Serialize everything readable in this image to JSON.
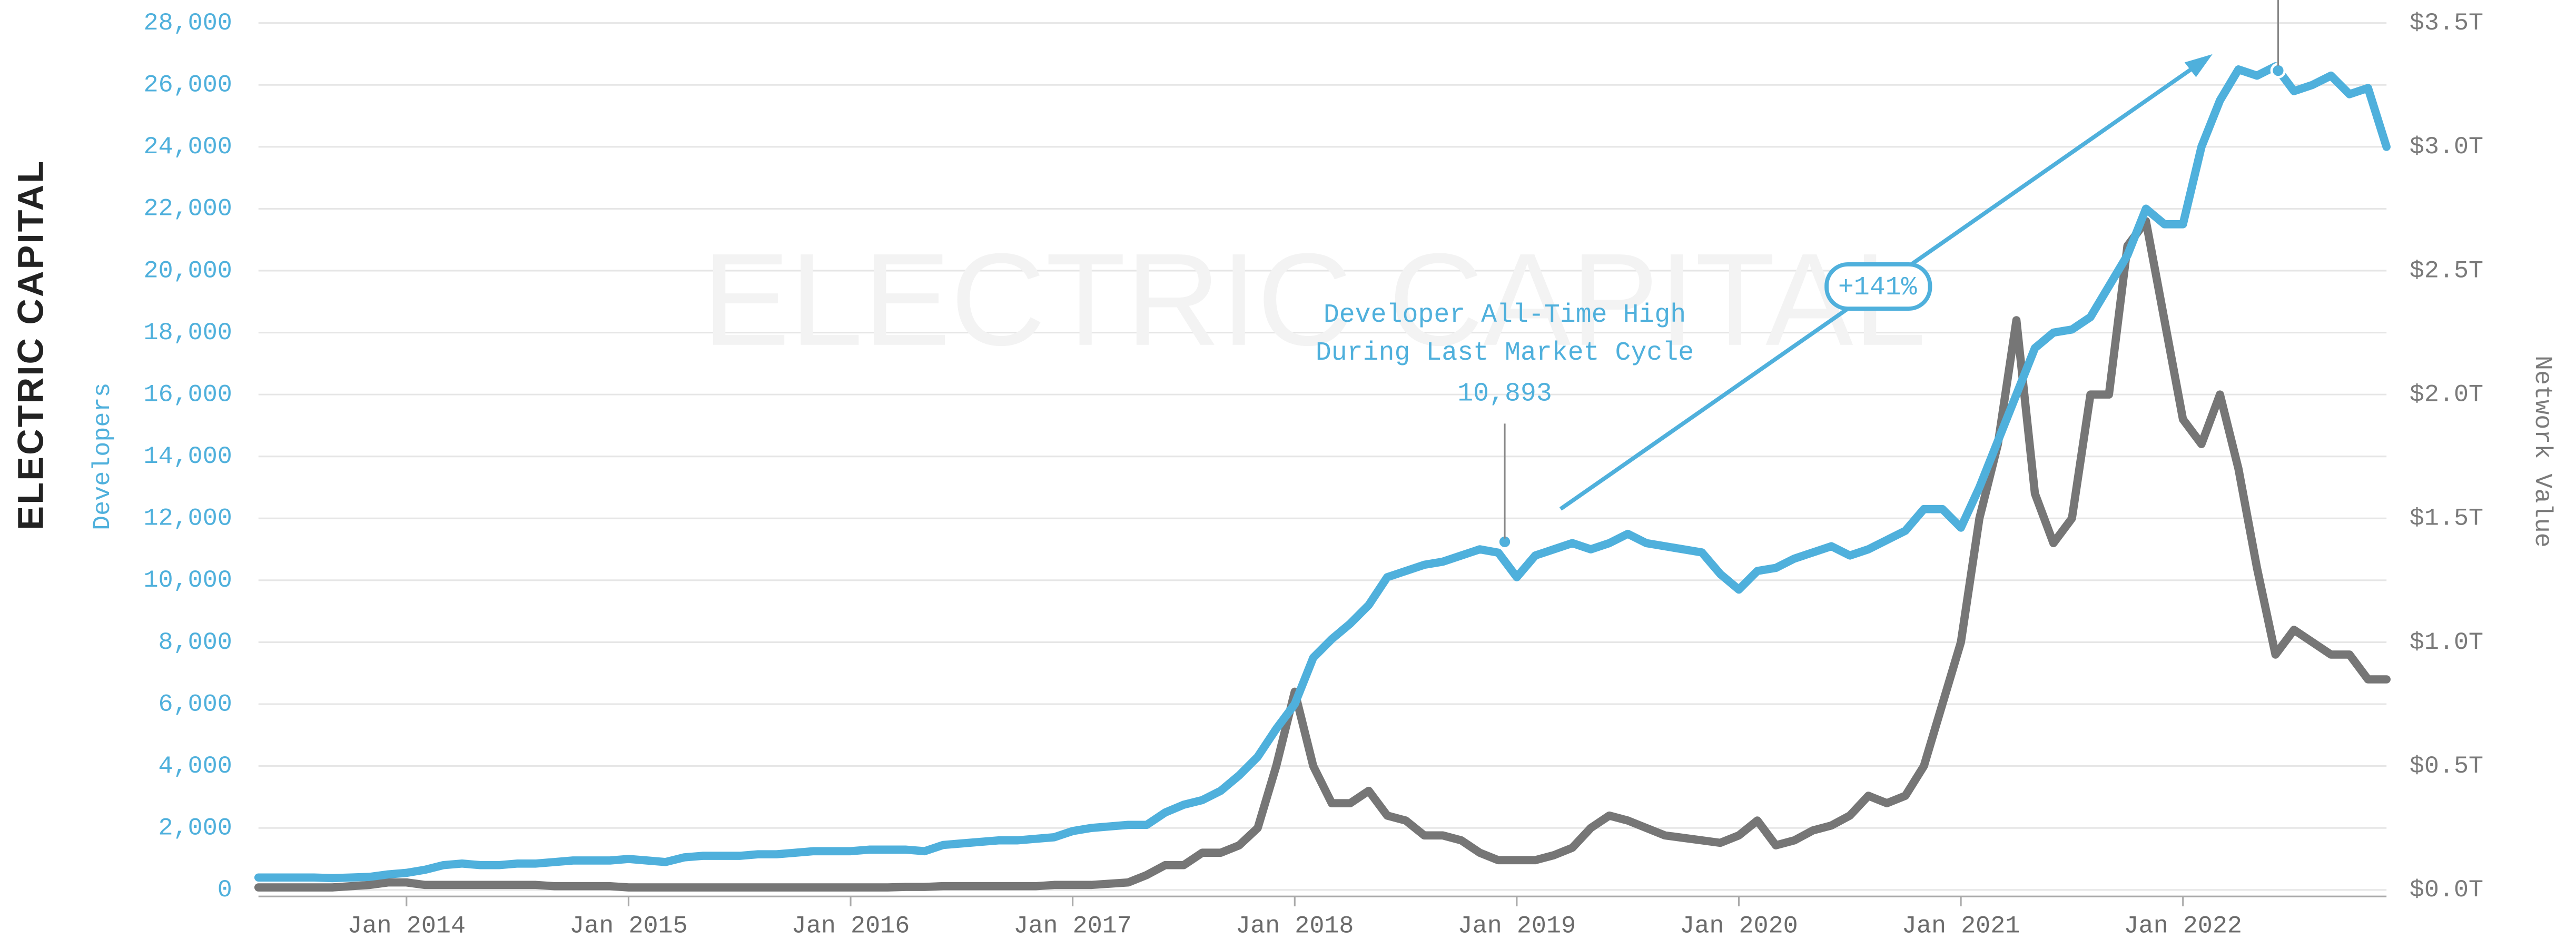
{
  "chart_data": {
    "type": "line",
    "logo": "ELECTRIC CAPITAL",
    "watermark": "ELECTRIC CAPITAL",
    "y_label": "Developers",
    "y2_label": "Network Value",
    "annotations": [
      "Developer All-Time High",
      "During Last Market Cycle",
      "10,893",
      "+141%"
    ],
    "x": [
      "2013-05",
      "2013-06",
      "2013-07",
      "2013-08",
      "2013-09",
      "2013-10",
      "2013-11",
      "2013-12",
      "2014-01",
      "2014-02",
      "2014-03",
      "2014-04",
      "2014-05",
      "2014-06",
      "2014-07",
      "2014-08",
      "2014-09",
      "2014-10",
      "2014-11",
      "2014-12",
      "2015-01",
      "2015-02",
      "2015-03",
      "2015-04",
      "2015-05",
      "2015-06",
      "2015-07",
      "2015-08",
      "2015-09",
      "2015-10",
      "2015-11",
      "2015-12",
      "2016-01",
      "2016-02",
      "2016-03",
      "2016-04",
      "2016-05",
      "2016-06",
      "2016-07",
      "2016-08",
      "2016-09",
      "2016-10",
      "2016-11",
      "2016-12",
      "2017-01",
      "2017-02",
      "2017-03",
      "2017-04",
      "2017-05",
      "2017-06",
      "2017-07",
      "2017-08",
      "2017-09",
      "2017-10",
      "2017-11",
      "2017-12",
      "2018-01",
      "2018-02",
      "2018-03",
      "2018-04",
      "2018-05",
      "2018-06",
      "2018-07",
      "2018-08",
      "2018-09",
      "2018-10",
      "2018-11",
      "2018-12",
      "2019-01",
      "2019-02",
      "2019-03",
      "2019-04",
      "2019-05",
      "2019-06",
      "2019-07",
      "2019-08",
      "2019-09",
      "2019-10",
      "2019-11",
      "2019-12",
      "2020-01",
      "2020-02",
      "2020-03",
      "2020-04",
      "2020-05",
      "2020-06",
      "2020-07",
      "2020-08",
      "2020-09",
      "2020-10",
      "2020-11",
      "2020-12",
      "2021-01",
      "2021-02",
      "2021-03",
      "2021-04",
      "2021-05",
      "2021-06",
      "2021-07",
      "2021-08",
      "2021-09",
      "2021-10",
      "2021-11",
      "2021-12",
      "2022-01",
      "2022-02",
      "2022-03",
      "2022-04",
      "2022-05",
      "2022-06",
      "2022-07",
      "2022-08",
      "2022-09",
      "2022-10",
      "2022-11",
      "2022-12"
    ],
    "xlim": [
      "2013-05",
      "2022-12"
    ],
    "xticks": [
      {
        "value": "2014-01",
        "label": "Jan 2014"
      },
      {
        "value": "2015-01",
        "label": "Jan 2015"
      },
      {
        "value": "2016-01",
        "label": "Jan 2016"
      },
      {
        "value": "2017-01",
        "label": "Jan 2017"
      },
      {
        "value": "2018-01",
        "label": "Jan 2018"
      },
      {
        "value": "2019-01",
        "label": "Jan 2019"
      },
      {
        "value": "2020-01",
        "label": "Jan 2020"
      },
      {
        "value": "2021-01",
        "label": "Jan 2021"
      },
      {
        "value": "2022-01",
        "label": "Jan 2022"
      }
    ],
    "ylim": [
      0,
      28000
    ],
    "yticks": [
      0,
      {
        "value": 2000,
        "label": "2,000"
      },
      {
        "value": 4000,
        "label": "4,000"
      },
      {
        "value": 6000,
        "label": "6,000"
      },
      {
        "value": 8000,
        "label": "8,000"
      },
      {
        "value": 10000,
        "label": "10,000"
      },
      {
        "value": 12000,
        "label": "12,000"
      },
      {
        "value": 14000,
        "label": "14,000"
      },
      {
        "value": 16000,
        "label": "16,000"
      },
      {
        "value": 18000,
        "label": "18,000"
      },
      {
        "value": 20000,
        "label": "20,000"
      },
      {
        "value": 22000,
        "label": "22,000"
      },
      {
        "value": 24000,
        "label": "24,000"
      },
      {
        "value": 26000,
        "label": "26,000"
      },
      {
        "value": 28000,
        "label": "28,000"
      }
    ],
    "y2lim": [
      0,
      3.5
    ],
    "y2ticks": [
      {
        "value": 0,
        "label": "$0.0T"
      },
      {
        "value": 0.5,
        "label": "$0.5T"
      },
      {
        "value": 1,
        "label": "$1.0T"
      },
      {
        "value": 1.5,
        "label": "$1.5T"
      },
      {
        "value": 2,
        "label": "$2.0T"
      },
      {
        "value": 2.5,
        "label": "$2.5T"
      },
      {
        "value": 3,
        "label": "$3.0T"
      },
      {
        "value": 3.5,
        "label": "$3.5T"
      }
    ],
    "grid": true,
    "series": [
      {
        "name": "Developers",
        "color": "#4fb0dc",
        "values": [
          400,
          400,
          400,
          400,
          380,
          400,
          420,
          500,
          550,
          650,
          800,
          850,
          800,
          800,
          850,
          850,
          900,
          950,
          950,
          950,
          1000,
          950,
          900,
          1050,
          1100,
          1100,
          1100,
          1150,
          1150,
          1200,
          1250,
          1250,
          1250,
          1300,
          1300,
          1300,
          1250,
          1450,
          1500,
          1550,
          1600,
          1600,
          1650,
          1700,
          1900,
          2000,
          2050,
          2100,
          2100,
          2500,
          2750,
          2900,
          3200,
          3700,
          4300,
          5200,
          6000,
          7500,
          8100,
          8600,
          9200,
          10100,
          10300,
          10500,
          10600,
          10800,
          11000,
          10893,
          10100,
          10800,
          11000,
          11200,
          11000,
          11200,
          11500,
          11200,
          11100,
          11000,
          10900,
          10200,
          9700,
          10300,
          10400,
          10700,
          10900,
          11100,
          10800,
          11000,
          11300,
          11600,
          12300,
          12300,
          11700,
          13000,
          14500,
          16000,
          17500,
          18000,
          18100,
          18500,
          19500,
          20500,
          22000,
          21500,
          21500,
          24000,
          25500,
          26500,
          26300,
          26600,
          25800,
          26000,
          26300,
          25700,
          25900,
          24000
        ]
      },
      {
        "name": "Network Value",
        "color": "#767676",
        "axis": "y2",
        "values": [
          0.01,
          0.01,
          0.01,
          0.01,
          0.01,
          0.015,
          0.02,
          0.03,
          0.03,
          0.02,
          0.02,
          0.02,
          0.02,
          0.02,
          0.02,
          0.02,
          0.015,
          0.015,
          0.015,
          0.015,
          0.01,
          0.01,
          0.01,
          0.01,
          0.01,
          0.01,
          0.01,
          0.01,
          0.01,
          0.01,
          0.01,
          0.01,
          0.01,
          0.01,
          0.01,
          0.012,
          0.012,
          0.015,
          0.015,
          0.015,
          0.015,
          0.015,
          0.015,
          0.02,
          0.02,
          0.02,
          0.025,
          0.03,
          0.06,
          0.1,
          0.1,
          0.15,
          0.15,
          0.18,
          0.25,
          0.5,
          0.8,
          0.5,
          0.35,
          0.35,
          0.4,
          0.3,
          0.28,
          0.22,
          0.22,
          0.2,
          0.15,
          0.12,
          0.12,
          0.12,
          0.14,
          0.17,
          0.25,
          0.3,
          0.28,
          0.25,
          0.22,
          0.21,
          0.2,
          0.19,
          0.22,
          0.28,
          0.18,
          0.2,
          0.24,
          0.26,
          0.3,
          0.38,
          0.35,
          0.38,
          0.5,
          0.75,
          1.0,
          1.5,
          1.8,
          2.3,
          1.6,
          1.4,
          1.5,
          2.0,
          2.0,
          2.6,
          2.7,
          2.3,
          1.9,
          1.8,
          2.0,
          1.7,
          1.3,
          0.95,
          1.05,
          1.0,
          0.95,
          0.95,
          0.85,
          0.85
        ]
      }
    ]
  }
}
